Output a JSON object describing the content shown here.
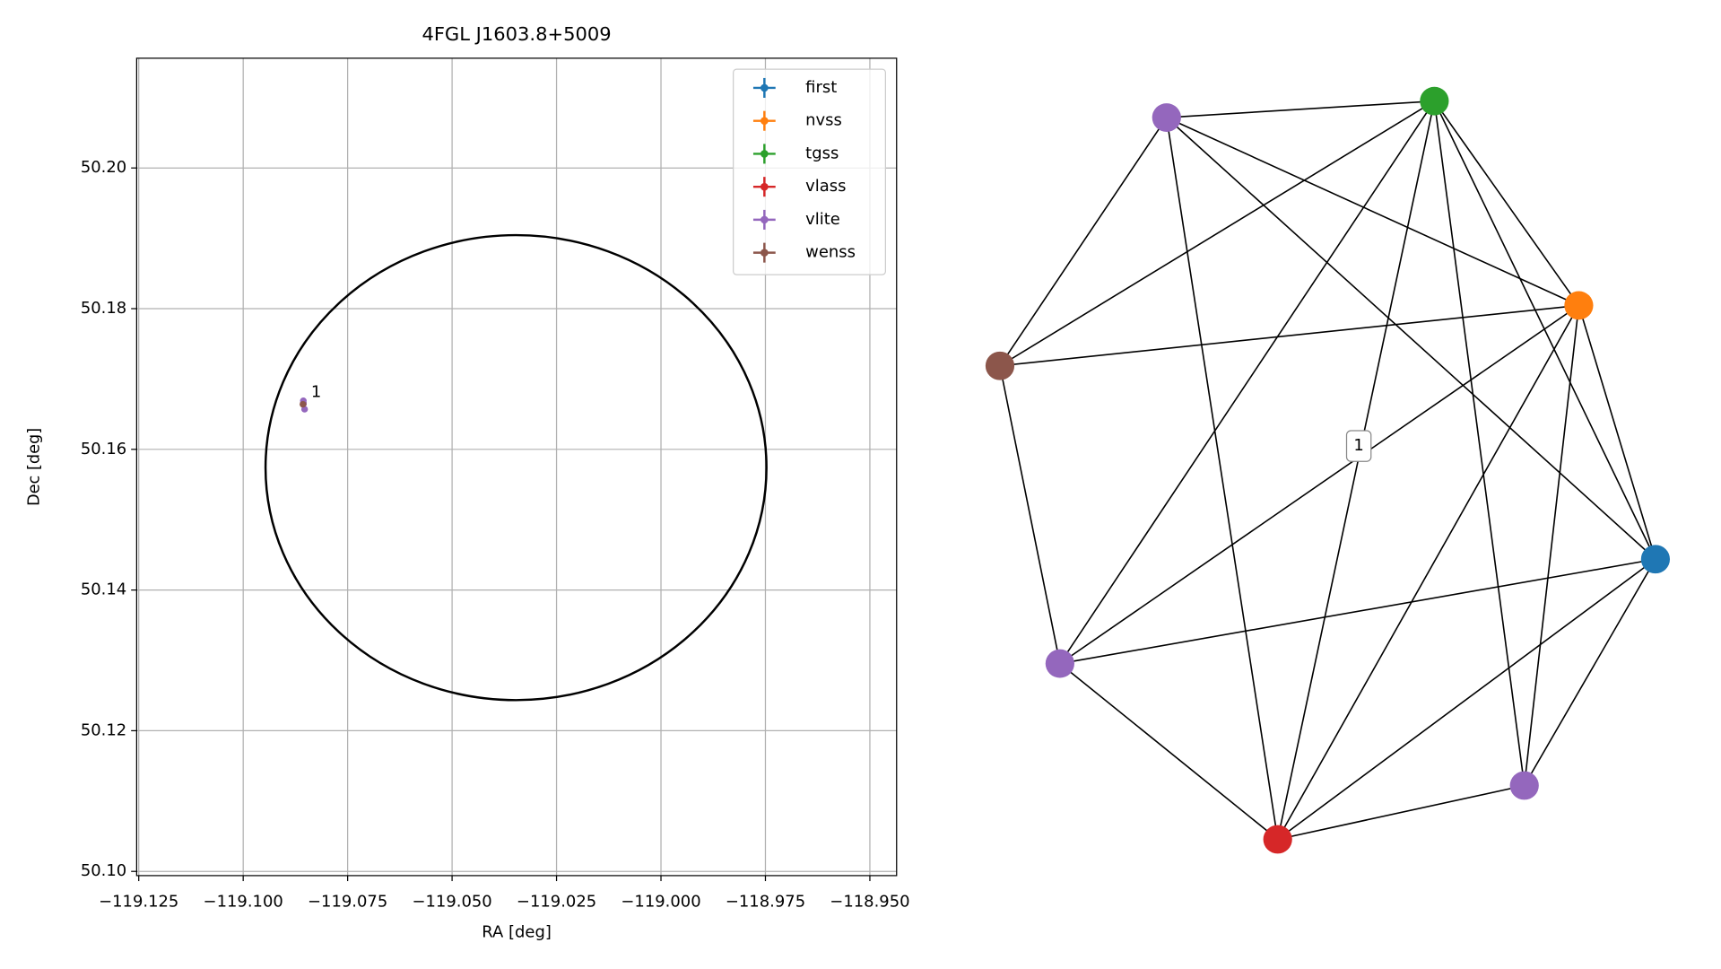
{
  "chart_data": [
    {
      "type": "scatter",
      "title": "4FGL J1603.8+5009",
      "xlabel": "RA [deg]",
      "ylabel": "Dec [deg]",
      "xlim": [
        -119.1255,
        -118.9436
      ],
      "ylim": [
        50.0994,
        50.2156
      ],
      "xticks": [
        {
          "value": -119.125,
          "label": "−119.125"
        },
        {
          "value": -119.1,
          "label": "−119.100"
        },
        {
          "value": -119.075,
          "label": "−119.075"
        },
        {
          "value": -119.05,
          "label": "−119.050"
        },
        {
          "value": -119.025,
          "label": "−119.025"
        },
        {
          "value": -119.0,
          "label": "−119.000"
        },
        {
          "value": -118.975,
          "label": "−118.975"
        },
        {
          "value": -118.95,
          "label": "−118.950"
        }
      ],
      "yticks": [
        {
          "value": 50.1,
          "label": "50.10"
        },
        50.12,
        50.14,
        50.16,
        50.18,
        {
          "value": 50.2,
          "label": "50.20"
        }
      ],
      "grid": true,
      "legend": "upper right",
      "series": [
        {
          "name": "first",
          "color": "#1f77b4",
          "x": [
            -119.0856
          ],
          "values": [
            50.1665
          ]
        },
        {
          "name": "nvss",
          "color": "#ff7f0e",
          "x": [
            -119.0856
          ],
          "values": [
            50.1665
          ]
        },
        {
          "name": "tgss",
          "color": "#2ca02c",
          "x": [
            -119.0856
          ],
          "values": [
            50.1665
          ]
        },
        {
          "name": "vlass",
          "color": "#d62728",
          "x": [
            -119.0856
          ],
          "values": [
            50.1665
          ]
        },
        {
          "name": "vlite",
          "color": "#9467bd",
          "x": [
            -119.0856,
            -119.0856,
            -119.0853
          ],
          "values": [
            50.1669,
            50.1665,
            50.1657
          ]
        },
        {
          "name": "wenss",
          "color": "#8c564b",
          "x": [
            -119.0857
          ],
          "values": [
            50.1664
          ]
        }
      ],
      "ellipse": {
        "center": [
          -119.0347,
          50.1574
        ],
        "width": 0.1199,
        "height": 0.0661,
        "color": "#000000"
      },
      "annotation": "1"
    },
    {
      "type": "network",
      "node_colors": [
        "#9467bd",
        "#2ca02c",
        "#ff7f0e",
        "#8c564b",
        "#1f77b4",
        "#9467bd",
        "#9467bd",
        "#d62728"
      ],
      "label": "1"
    }
  ]
}
